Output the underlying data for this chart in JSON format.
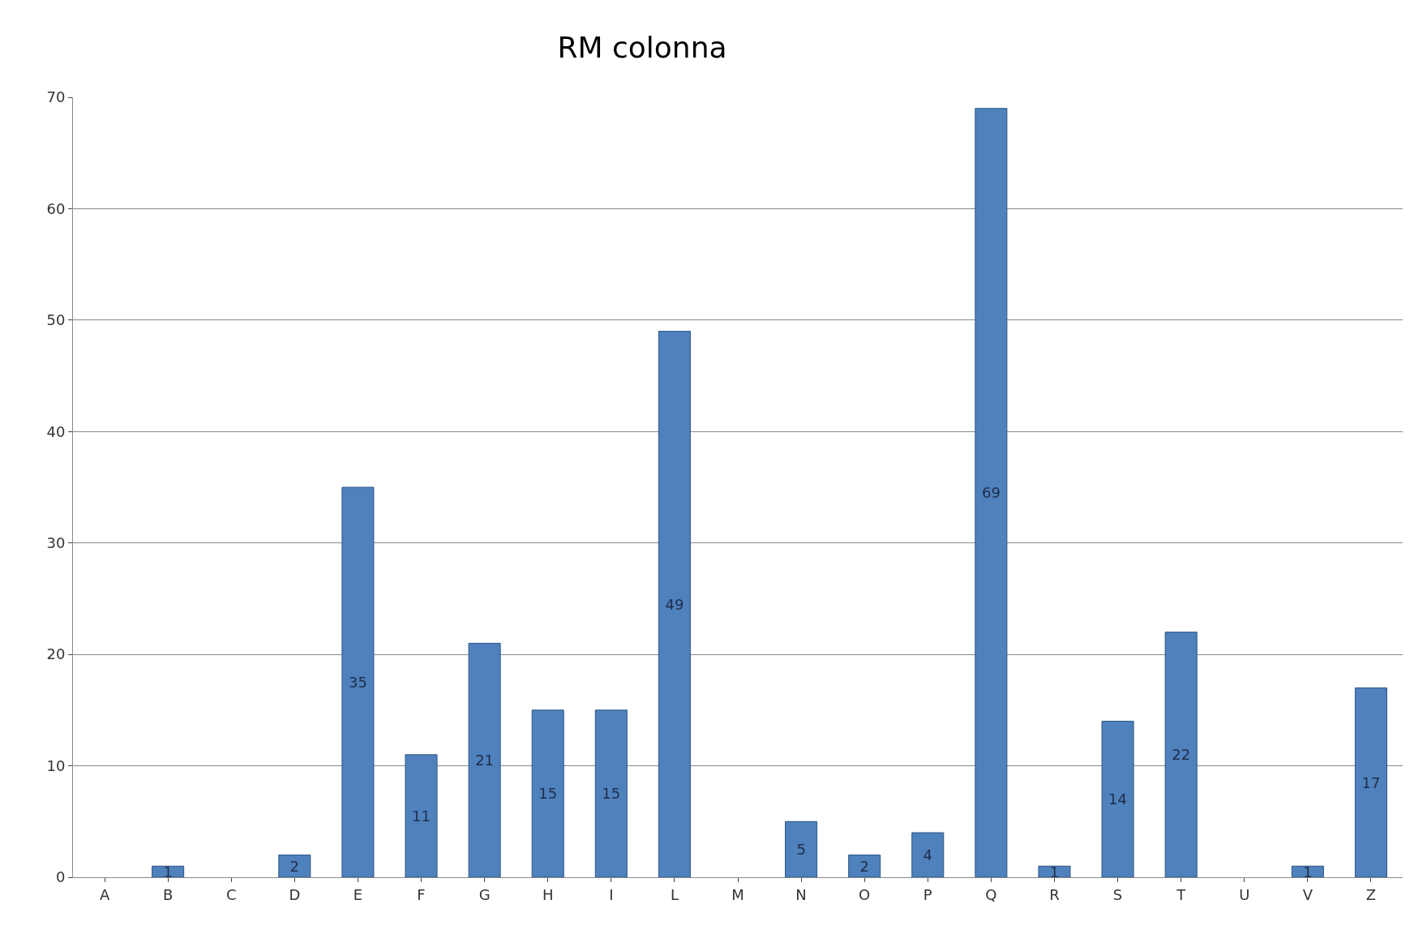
{
  "chart_data": {
    "type": "bar",
    "title": "RM colonna",
    "categories": [
      "A",
      "B",
      "C",
      "D",
      "E",
      "F",
      "G",
      "H",
      "I",
      "L",
      "M",
      "N",
      "O",
      "P",
      "Q",
      "R",
      "S",
      "T",
      "U",
      "V",
      "Z"
    ],
    "values": [
      null,
      1,
      null,
      2,
      35,
      11,
      21,
      15,
      15,
      49,
      null,
      5,
      2,
      4,
      69,
      1,
      14,
      22,
      null,
      1,
      17
    ],
    "color": "#4f81bd",
    "data_labels": true,
    "ylim": [
      0,
      70
    ],
    "yticks": [
      0,
      10,
      20,
      30,
      40,
      50,
      60,
      70
    ],
    "grid": "y",
    "legend": false
  }
}
